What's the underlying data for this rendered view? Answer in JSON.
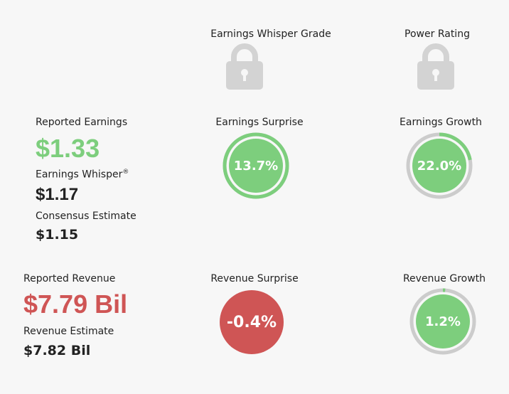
{
  "header": {
    "whisper_grade_label": "Earnings Whisper Grade",
    "power_rating_label": "Power Rating"
  },
  "earnings": {
    "reported_label": "Reported Earnings",
    "reported_value": "$1.33",
    "whisper_label": "Earnings Whisper",
    "whisper_mark": "®",
    "whisper_value": "$1.17",
    "consensus_label": "Consensus Estimate",
    "consensus_value": "$1.15",
    "surprise_label": "Earnings Surprise",
    "surprise_value": "13.7%",
    "surprise_fraction": 1.0,
    "growth_label": "Earnings Growth",
    "growth_value": "22.0%",
    "growth_fraction": 0.22
  },
  "revenue": {
    "reported_label": "Reported Revenue",
    "reported_value": "$7.79 Bil",
    "estimate_label": "Revenue Estimate",
    "estimate_value": "$7.82 Bil",
    "surprise_label": "Revenue Surprise",
    "surprise_value": "-0.4%",
    "growth_label": "Revenue Growth",
    "growth_value": "1.2%",
    "growth_fraction": 0.012
  },
  "colors": {
    "green": "#7dce7d",
    "red": "#cf5555",
    "track": "#cccccc",
    "lock": "#d3d3d3"
  },
  "icons": {
    "grade_lock": "lock-icon",
    "power_lock": "lock-icon"
  }
}
